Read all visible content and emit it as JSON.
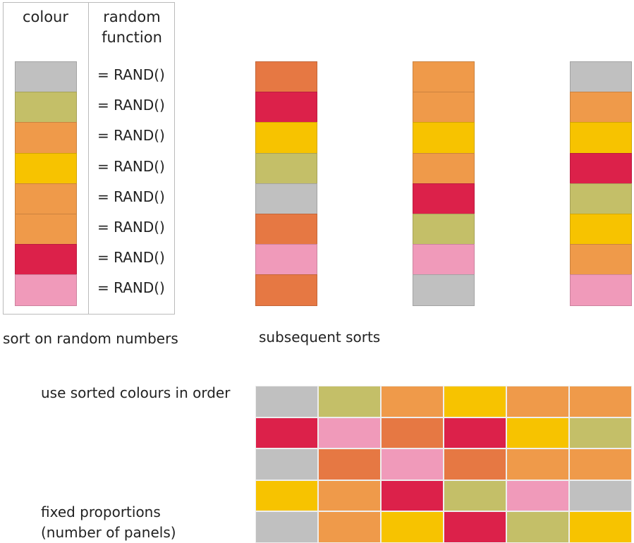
{
  "palette": {
    "gray": "#c0c0c0",
    "olive": "#c4bf68",
    "orange": "#ef9a4a",
    "yellow": "#f7c300",
    "red": "#dc214a",
    "pink": "#f09aba",
    "dark-orange": "#e67843"
  },
  "table": {
    "colour_header": "colour",
    "function_header": "random function",
    "function_label": "= RAND()",
    "colours": [
      "gray",
      "olive",
      "orange",
      "yellow",
      "orange",
      "orange",
      "red",
      "pink"
    ]
  },
  "labels": {
    "sort": "sort on random numbers",
    "subsequent": "subsequent sorts",
    "use_sorted": "use sorted colours in order",
    "fixed_line1": "fixed proportions",
    "fixed_line2": "(number of panels)"
  },
  "sorts": [
    [
      "dark-orange",
      "red",
      "yellow",
      "olive",
      "gray",
      "dark-orange",
      "pink",
      "dark-orange"
    ],
    [
      "orange",
      "orange",
      "yellow",
      "orange",
      "red",
      "olive",
      "pink",
      "gray"
    ],
    [
      "gray",
      "orange",
      "yellow",
      "red",
      "olive",
      "yellow",
      "orange",
      "pink"
    ]
  ],
  "grid": [
    [
      "gray",
      "olive",
      "orange",
      "yellow",
      "orange",
      "orange"
    ],
    [
      "red",
      "pink",
      "dark-orange",
      "red",
      "yellow",
      "olive"
    ],
    [
      "gray",
      "dark-orange",
      "pink",
      "dark-orange",
      "orange",
      "orange"
    ],
    [
      "yellow",
      "orange",
      "red",
      "olive",
      "pink",
      "gray"
    ],
    [
      "gray",
      "orange",
      "yellow",
      "red",
      "olive",
      "yellow"
    ]
  ]
}
